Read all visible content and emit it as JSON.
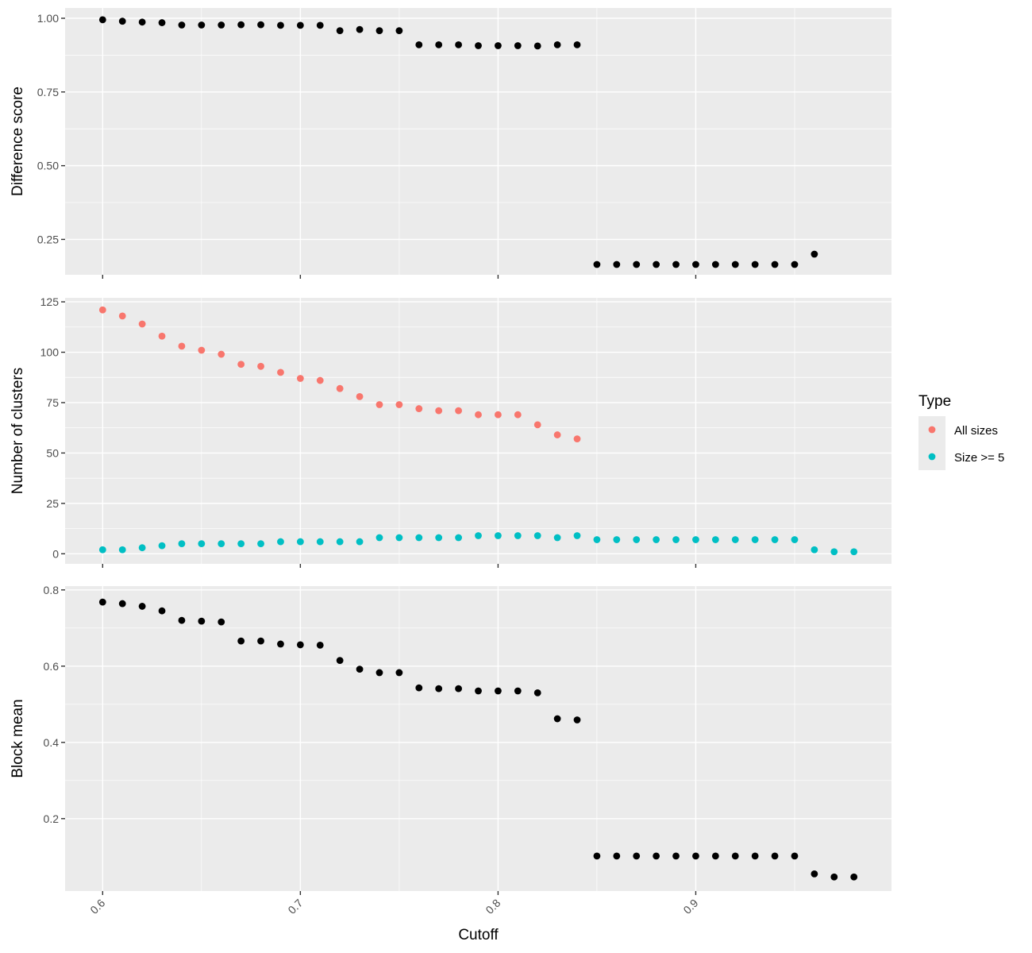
{
  "chart_data": {
    "type": "scatter",
    "x_axis": {
      "label": "Cutoff",
      "range": [
        0.581,
        0.999
      ],
      "ticks": [
        0.6,
        0.7,
        0.8,
        0.9
      ],
      "tick_labels": [
        "0.6",
        "0.7",
        "0.8",
        "0.9"
      ],
      "tick_label_rotation": "45deg"
    },
    "grid": true,
    "legend": {
      "title": "Type",
      "placement": "right",
      "entries": [
        {
          "label": "All sizes",
          "color": "#F8766D"
        },
        {
          "label": "Size >= 5",
          "color": "#00BFC4"
        }
      ]
    },
    "panels": [
      {
        "id": "difference",
        "ylabel": "Difference score",
        "ylim": [
          0.13,
          1.035
        ],
        "yticks": [
          0.25,
          0.5,
          0.75,
          1.0
        ],
        "ytick_labels": [
          "0.25",
          "0.50",
          "0.75",
          "1.00"
        ],
        "series": [
          {
            "color": "#000000",
            "x": [
              0.6,
              0.61,
              0.62,
              0.63,
              0.64,
              0.65,
              0.66,
              0.67,
              0.68,
              0.69,
              0.7,
              0.71,
              0.72,
              0.73,
              0.74,
              0.75,
              0.76,
              0.77,
              0.78,
              0.79,
              0.8,
              0.81,
              0.82,
              0.83,
              0.84,
              0.85,
              0.86,
              0.87,
              0.88,
              0.89,
              0.9,
              0.91,
              0.92,
              0.93,
              0.94,
              0.95,
              0.96
            ],
            "y": [
              0.995,
              0.99,
              0.987,
              0.985,
              0.977,
              0.977,
              0.977,
              0.978,
              0.978,
              0.976,
              0.976,
              0.976,
              0.958,
              0.962,
              0.958,
              0.958,
              0.91,
              0.91,
              0.91,
              0.907,
              0.907,
              0.907,
              0.906,
              0.91,
              0.91,
              0.165,
              0.165,
              0.165,
              0.165,
              0.165,
              0.165,
              0.165,
              0.165,
              0.165,
              0.165,
              0.165,
              0.2
            ]
          }
        ]
      },
      {
        "id": "clusters",
        "ylabel": "Number of clusters",
        "ylim": [
          -5,
          127
        ],
        "yticks": [
          0,
          25,
          50,
          75,
          100,
          125
        ],
        "ytick_labels": [
          "0",
          "25",
          "50",
          "75",
          "100",
          "125"
        ],
        "series": [
          {
            "name": "All sizes",
            "color": "#F8766D",
            "x": [
              0.6,
              0.61,
              0.62,
              0.63,
              0.64,
              0.65,
              0.66,
              0.67,
              0.68,
              0.69,
              0.7,
              0.71,
              0.72,
              0.73,
              0.74,
              0.75,
              0.76,
              0.77,
              0.78,
              0.79,
              0.8,
              0.81,
              0.82,
              0.83,
              0.84
            ],
            "y": [
              121,
              118,
              114,
              108,
              103,
              101,
              99,
              94,
              93,
              90,
              87,
              86,
              82,
              78,
              74,
              74,
              72,
              71,
              71,
              69,
              69,
              69,
              64,
              59,
              57
            ]
          },
          {
            "name": "Size >= 5",
            "color": "#00BFC4",
            "x": [
              0.6,
              0.61,
              0.62,
              0.63,
              0.64,
              0.65,
              0.66,
              0.67,
              0.68,
              0.69,
              0.7,
              0.71,
              0.72,
              0.73,
              0.74,
              0.75,
              0.76,
              0.77,
              0.78,
              0.79,
              0.8,
              0.81,
              0.82,
              0.83,
              0.84,
              0.85,
              0.86,
              0.87,
              0.88,
              0.89,
              0.9,
              0.91,
              0.92,
              0.93,
              0.94,
              0.95,
              0.96,
              0.97,
              0.98
            ],
            "y": [
              2,
              2,
              3,
              4,
              5,
              5,
              5,
              5,
              5,
              6,
              6,
              6,
              6,
              6,
              8,
              8,
              8,
              8,
              8,
              9,
              9,
              9,
              9,
              8,
              9,
              7,
              7,
              7,
              7,
              7,
              7,
              7,
              7,
              7,
              7,
              7,
              2,
              1,
              1
            ]
          }
        ]
      },
      {
        "id": "blockmean",
        "ylabel": "Block mean",
        "ylim": [
          0.01,
          0.81
        ],
        "yticks": [
          0.2,
          0.4,
          0.6,
          0.8
        ],
        "ytick_labels": [
          "0.2",
          "0.4",
          "0.6",
          "0.8"
        ],
        "series": [
          {
            "color": "#000000",
            "x": [
              0.6,
              0.61,
              0.62,
              0.63,
              0.64,
              0.65,
              0.66,
              0.67,
              0.68,
              0.69,
              0.7,
              0.71,
              0.72,
              0.73,
              0.74,
              0.75,
              0.76,
              0.77,
              0.78,
              0.79,
              0.8,
              0.81,
              0.82,
              0.83,
              0.84,
              0.85,
              0.86,
              0.87,
              0.88,
              0.89,
              0.9,
              0.91,
              0.92,
              0.93,
              0.94,
              0.95,
              0.96,
              0.97,
              0.98
            ],
            "y": [
              0.768,
              0.764,
              0.757,
              0.745,
              0.72,
              0.718,
              0.716,
              0.666,
              0.666,
              0.658,
              0.656,
              0.655,
              0.615,
              0.592,
              0.583,
              0.583,
              0.543,
              0.541,
              0.541,
              0.535,
              0.535,
              0.535,
              0.53,
              0.462,
              0.459,
              0.102,
              0.102,
              0.102,
              0.102,
              0.102,
              0.102,
              0.102,
              0.102,
              0.102,
              0.102,
              0.102,
              0.055,
              0.047,
              0.047
            ]
          }
        ]
      }
    ]
  }
}
